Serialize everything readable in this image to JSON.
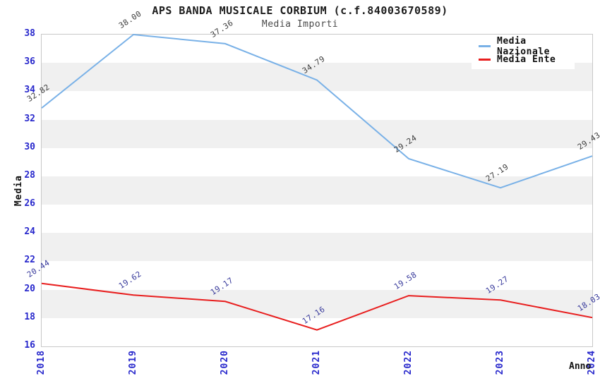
{
  "chart_data": {
    "type": "line",
    "title": "APS BANDA MUSICALE CORBIUM (c.f.84003670589)",
    "subtitle": "Media Importi",
    "x": [
      2018,
      2019,
      2020,
      2021,
      2022,
      2023,
      2024
    ],
    "series": [
      {
        "name": "Media Nazionale",
        "color": "#79b1e7",
        "label_color": "#3d3d3d",
        "values": [
          32.82,
          38.0,
          37.36,
          34.79,
          29.24,
          27.19,
          29.43
        ],
        "point_labels": [
          "32.82",
          "38.00",
          "37.36",
          "34.79",
          "29.24",
          "27.19",
          "29.43"
        ]
      },
      {
        "name": "Media Ente",
        "color": "#e81e1e",
        "label_color": "#37399b",
        "values": [
          20.44,
          19.62,
          19.17,
          17.16,
          19.58,
          19.27,
          18.03
        ],
        "point_labels": [
          "20.44",
          "19.62",
          "19.17",
          "17.16",
          "19.58",
          "19.27",
          "18.03"
        ]
      }
    ],
    "xlabel": "Anno",
    "ylabel": "Media",
    "ylim": [
      16,
      38
    ],
    "yticks": [
      16,
      18,
      20,
      22,
      24,
      26,
      28,
      30,
      32,
      34,
      36,
      38
    ],
    "grid": "horizontal-bands",
    "band_colors": [
      "#ffffff",
      "#f0f0f0"
    ],
    "tick_label_color": "#2828cc",
    "legend_position": "top-right"
  }
}
